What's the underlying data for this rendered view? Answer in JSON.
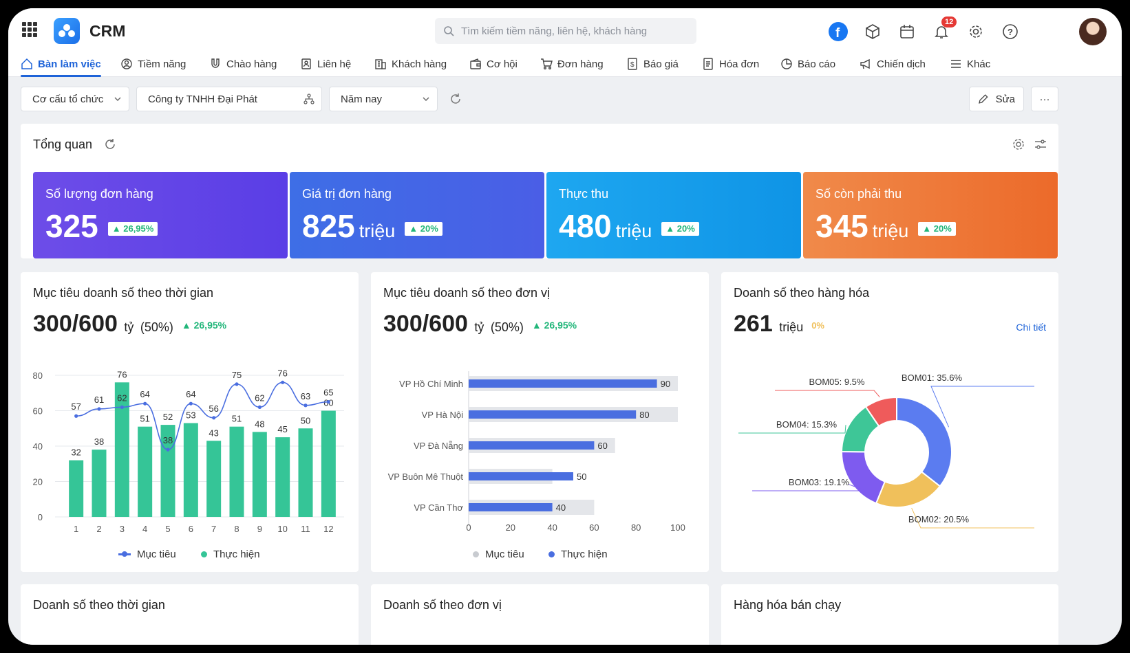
{
  "app": {
    "title": "CRM"
  },
  "search": {
    "placeholder": "Tìm kiếm tiềm năng, liên hệ, khách hàng"
  },
  "notifications": {
    "count": "12"
  },
  "nav": [
    {
      "label": "Bàn làm việc",
      "icon": "home-icon",
      "active": true
    },
    {
      "label": "Tiềm năng",
      "icon": "target-icon"
    },
    {
      "label": "Chào hàng",
      "icon": "magnet-icon"
    },
    {
      "label": "Liên hệ",
      "icon": "contact-icon"
    },
    {
      "label": "Khách hàng",
      "icon": "building-icon"
    },
    {
      "label": "Cơ hội",
      "icon": "wallet-icon"
    },
    {
      "label": "Đơn hàng",
      "icon": "cart-icon"
    },
    {
      "label": "Báo giá",
      "icon": "quote-icon"
    },
    {
      "label": "Hóa đơn",
      "icon": "invoice-icon"
    },
    {
      "label": "Báo cáo",
      "icon": "report-icon"
    },
    {
      "label": "Chiến dịch",
      "icon": "megaphone-icon"
    },
    {
      "label": "Khác",
      "icon": "menu-icon"
    }
  ],
  "filters": {
    "org": "Cơ cấu tổ chức",
    "company": "Công ty TNHH Đại Phát",
    "period": "Năm nay",
    "edit_label": "Sửa",
    "more_label": "···"
  },
  "overview": {
    "title": "Tổng quan",
    "kpis": [
      {
        "label": "Số lượng đơn hàng",
        "value": "325",
        "unit": "",
        "change": "26,95%"
      },
      {
        "label": "Giá trị đơn hàng",
        "value": "825",
        "unit": "triệu",
        "change": "20%"
      },
      {
        "label": "Thực thu",
        "value": "480",
        "unit": "triệu",
        "change": "20%"
      },
      {
        "label": "Số còn phải thu",
        "value": "345",
        "unit": "triệu",
        "change": "20%"
      }
    ]
  },
  "panels": {
    "time_target": {
      "title": "Mục tiêu doanh số theo thời gian",
      "value": "300",
      "target": "/600",
      "unit": "tỷ",
      "ratio": "(50%)",
      "change": "26,95%"
    },
    "unit_target": {
      "title": "Mục tiêu doanh số theo đơn vị",
      "value": "300",
      "target": "/600",
      "unit": "tỷ",
      "ratio": "(50%)",
      "change": "26,95%"
    },
    "product_sales": {
      "title": "Doanh số theo hàng hóa",
      "value": "261",
      "unit": "triệu",
      "change": "0%",
      "detail_link": "Chi tiết"
    }
  },
  "bottom_titles": [
    "Doanh số theo thời gian",
    "Doanh số theo đơn vị",
    "Hàng hóa bán chạy"
  ],
  "colors": {
    "primary": "#1e63d8",
    "bar_green": "#35c597",
    "target_blue": "#4a6ee0",
    "unit_bar": "#4a6ee0",
    "unit_bg": "#e4e6ea",
    "up_green": "#22b67a"
  },
  "chart_data": [
    {
      "type": "bar",
      "categories": [
        "1",
        "2",
        "3",
        "4",
        "5",
        "6",
        "7",
        "8",
        "9",
        "10",
        "11",
        "12"
      ],
      "series": [
        {
          "name": "Mục tiêu",
          "type": "line",
          "values": [
            57,
            61,
            62,
            64,
            38,
            64,
            56,
            75,
            62,
            76,
            63,
            65
          ]
        },
        {
          "name": "Thực hiện",
          "type": "bar",
          "values": [
            32,
            38,
            76,
            51,
            52,
            53,
            43,
            51,
            48,
            45,
            50,
            60
          ]
        }
      ],
      "ylim": [
        0,
        80
      ],
      "yticks": [
        0,
        20,
        40,
        60,
        80
      ],
      "legend": "bottom"
    },
    {
      "type": "bar",
      "orientation": "horizontal",
      "categories": [
        "VP Hồ Chí Minh",
        "VP Hà Nội",
        "VP Đà Nẵng",
        "VP  Buôn Mê Thuột",
        "VP Cần Thơ"
      ],
      "series": [
        {
          "name": "Mục tiêu",
          "values": [
            100,
            100,
            70,
            40,
            60
          ]
        },
        {
          "name": "Thực hiện",
          "values": [
            90,
            80,
            60,
            50,
            40
          ]
        }
      ],
      "xlim": [
        0,
        100
      ],
      "xticks": [
        0,
        20,
        40,
        60,
        80,
        100
      ],
      "legend": "bottom"
    },
    {
      "type": "pie",
      "donut": true,
      "slices": [
        {
          "label": "BOM01",
          "value": 35.6,
          "text": "BOM01: 35.6%",
          "color": "#5b7cf0"
        },
        {
          "label": "BOM02",
          "value": 20.5,
          "text": "BOM02: 20.5%",
          "color": "#f0c05b"
        },
        {
          "label": "BOM03",
          "value": 19.1,
          "text": "BOM03: 19.1%",
          "color": "#7e5bef"
        },
        {
          "label": "BOM04",
          "value": 15.3,
          "text": "BOM04: 15.3%",
          "color": "#3ec697"
        },
        {
          "label": "BOM05",
          "value": 9.5,
          "text": "BOM05: 9.5%",
          "color": "#ef5b5b"
        }
      ]
    }
  ]
}
